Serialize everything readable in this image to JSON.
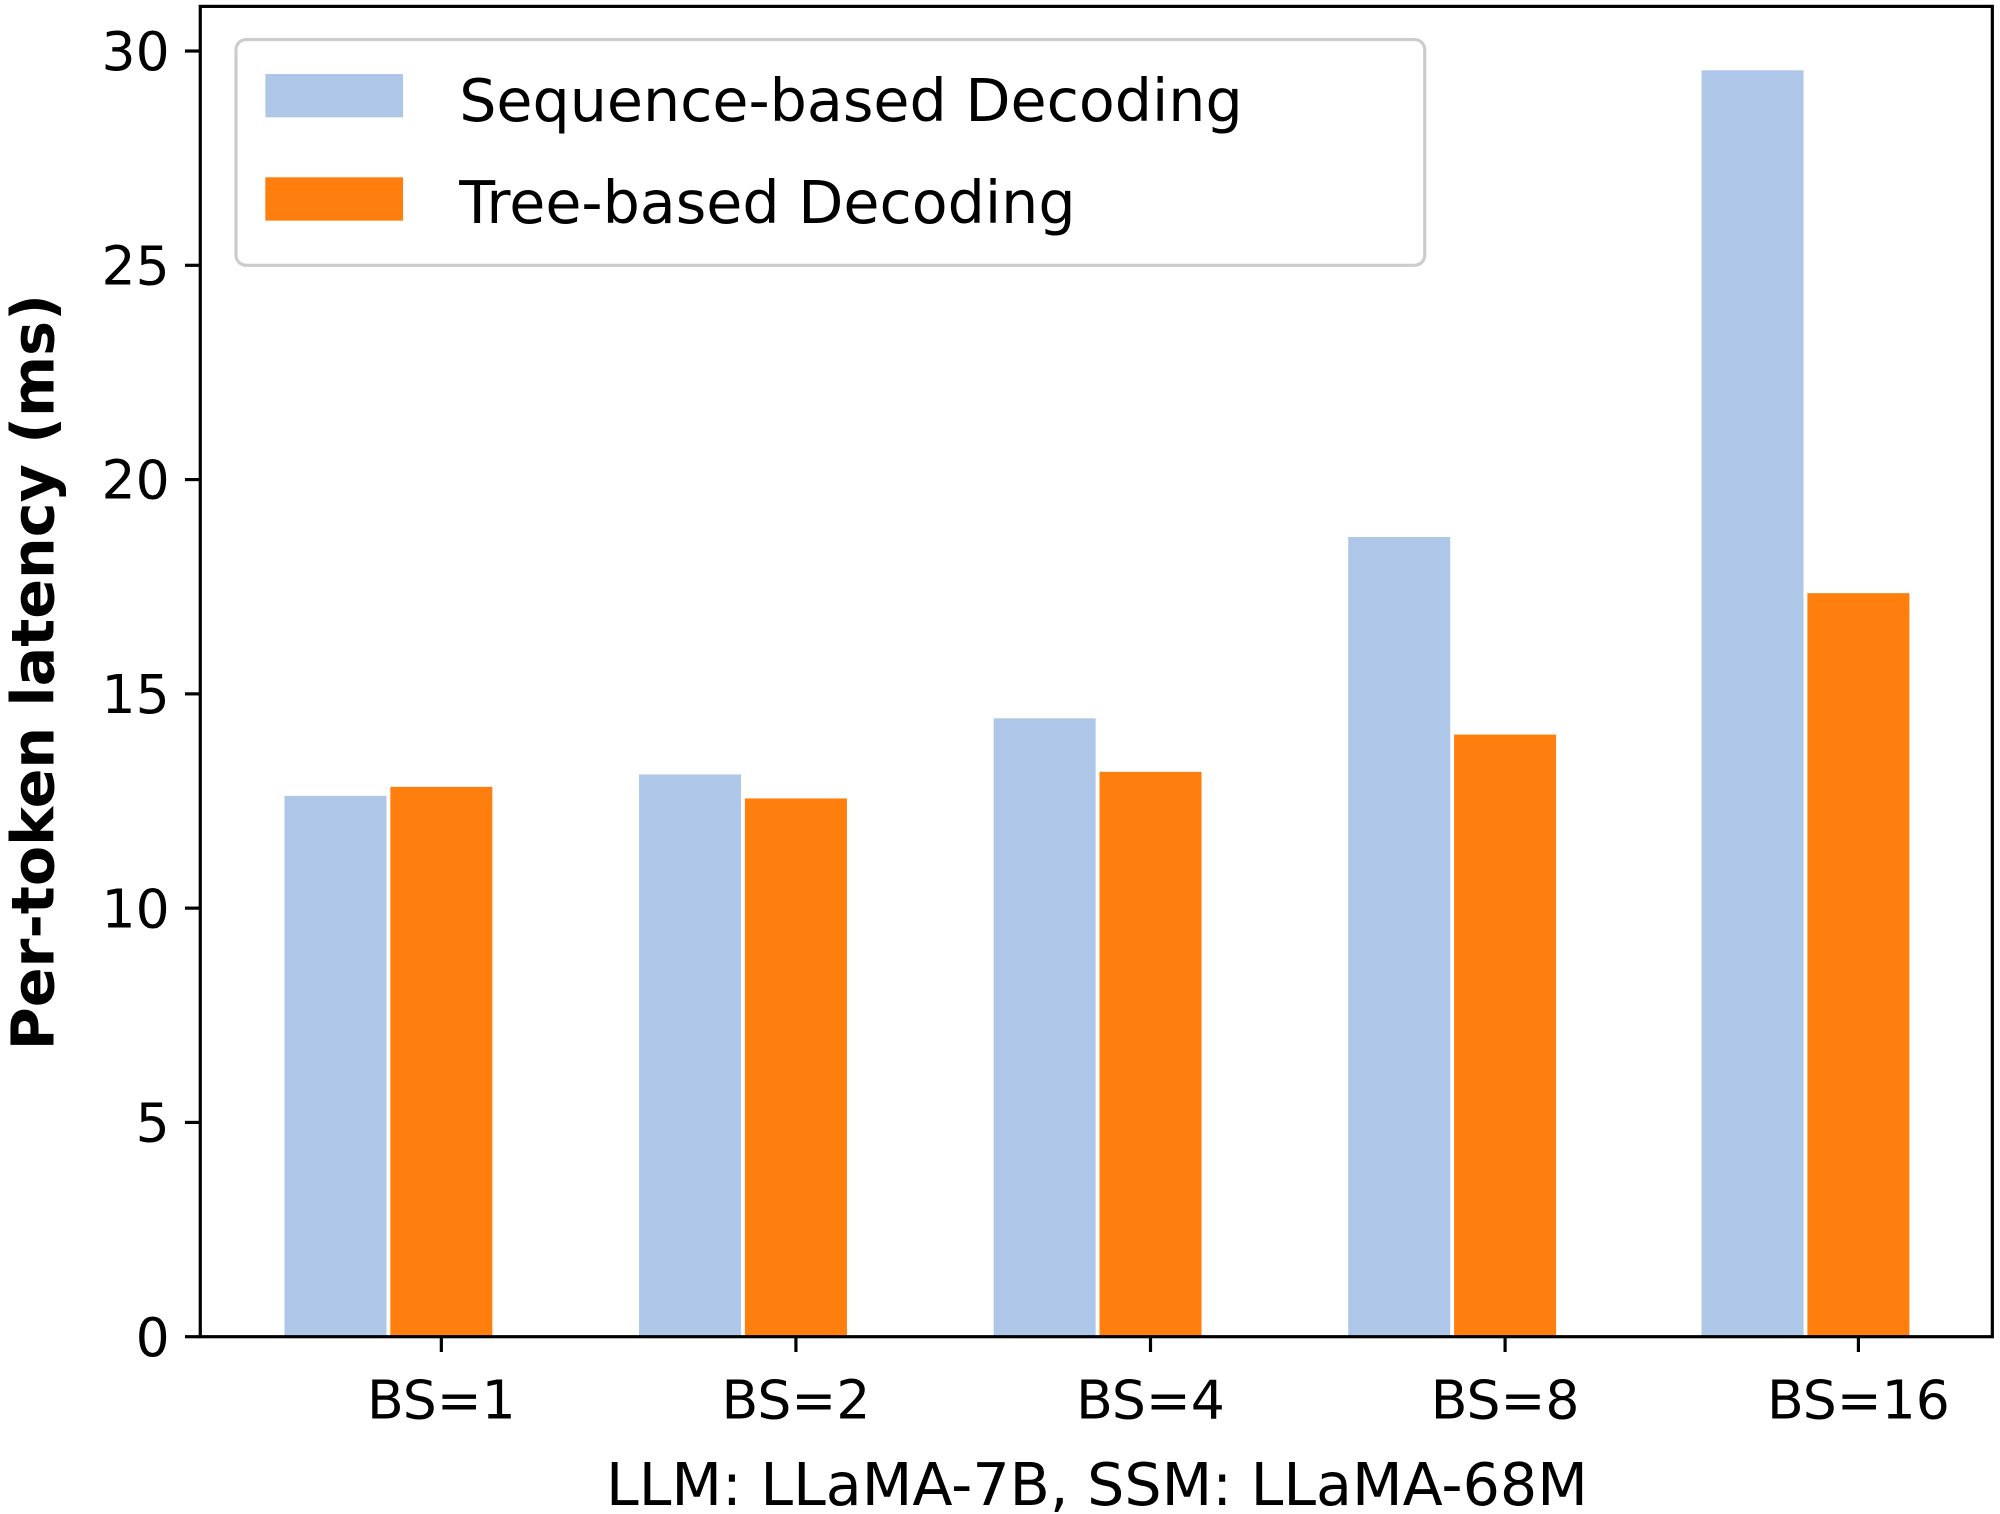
{
  "chart_data": {
    "type": "bar",
    "categories": [
      "BS=1",
      "BS=2",
      "BS=4",
      "BS=8",
      "BS=16"
    ],
    "series": [
      {
        "name": "Sequence-based Decoding",
        "color": "#aec7e8",
        "values": [
          12.62,
          13.12,
          14.43,
          18.66,
          29.55
        ]
      },
      {
        "name": "Tree-based Decoding",
        "color": "#ff7f0e",
        "values": [
          12.83,
          12.56,
          13.18,
          14.05,
          17.35
        ]
      }
    ],
    "xlabel": "LLM: LLaMA-7B, SSM: LLaMA-68M",
    "ylabel": "Per-token latency (ms)",
    "ylim": [
      0,
      31
    ],
    "yticks": [
      0,
      5,
      10,
      15,
      20,
      25,
      30
    ],
    "grid": false,
    "legend": "top-left"
  }
}
